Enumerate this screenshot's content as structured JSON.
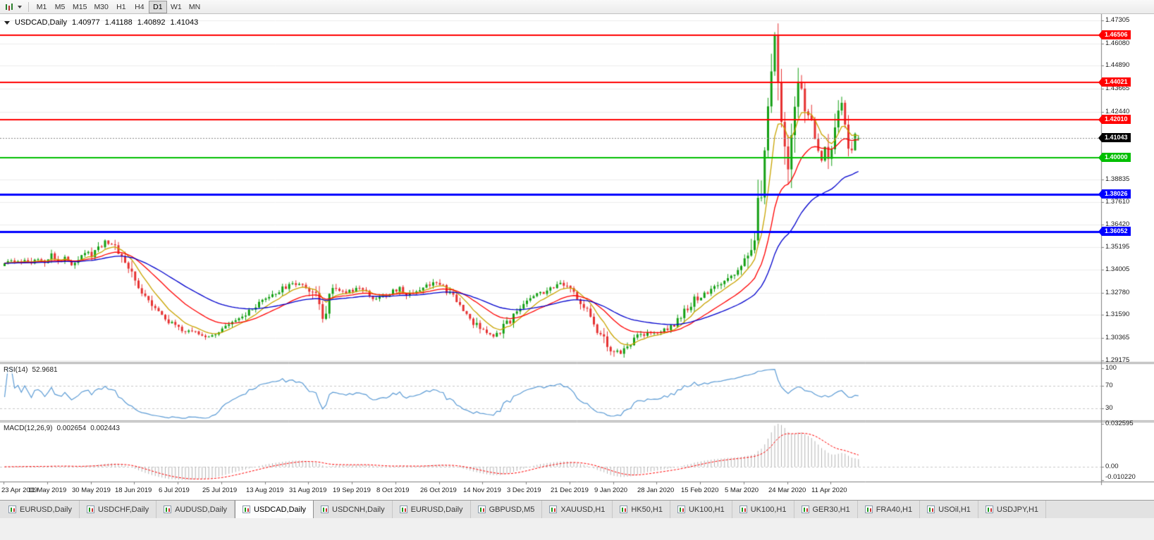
{
  "toolbar": {
    "timeframes": [
      {
        "label": "M1",
        "active": false
      },
      {
        "label": "M5",
        "active": false
      },
      {
        "label": "M15",
        "active": false
      },
      {
        "label": "M30",
        "active": false
      },
      {
        "label": "H1",
        "active": false
      },
      {
        "label": "H4",
        "active": false
      },
      {
        "label": "D1",
        "active": true
      },
      {
        "label": "W1",
        "active": false
      },
      {
        "label": "MN",
        "active": false
      }
    ]
  },
  "chart_header": {
    "symbol_period": "USDCAD,Daily",
    "open": "1.40977",
    "high": "1.41188",
    "low": "1.40892",
    "close": "1.41043"
  },
  "chart_data": {
    "type": "candlestick",
    "symbol": "USDCAD",
    "timeframe": "Daily",
    "num_candles": 256,
    "candles_per_label": 13,
    "x_labels": [
      "23 Apr 2019",
      "11 May 2019",
      "30 May 2019",
      "18 Jun 2019",
      "6 Jul 2019",
      "25 Jul 2019",
      "13 Aug 2019",
      "31 Aug 2019",
      "19 Sep 2019",
      "8 Oct 2019",
      "26 Oct 2019",
      "14 Nov 2019",
      "3 Dec 2019",
      "21 Dec 2019",
      "9 Jan 2020",
      "28 Jan 2020",
      "15 Feb 2020",
      "5 Mar 2020",
      "24 Mar 2020",
      "11 Apr 2020"
    ],
    "y_axis": {
      "min": 1.2905,
      "max": 1.4765,
      "ticks": [
        {
          "v": 1.47305,
          "label": "1.47305"
        },
        {
          "v": 1.4608,
          "label": "1.46080"
        },
        {
          "v": 1.4489,
          "label": "1.44890"
        },
        {
          "v": 1.43665,
          "label": "1.43665"
        },
        {
          "v": 1.4244,
          "label": "1.42440"
        },
        {
          "v": 1.38835,
          "label": "1.38835"
        },
        {
          "v": 1.3761,
          "label": "1.37610"
        },
        {
          "v": 1.3642,
          "label": "1.36420"
        },
        {
          "v": 1.35195,
          "label": "1.35195"
        },
        {
          "v": 1.34005,
          "label": "1.34005"
        },
        {
          "v": 1.3278,
          "label": "1.32780"
        },
        {
          "v": 1.3159,
          "label": "1.31590"
        },
        {
          "v": 1.30365,
          "label": "1.30365"
        },
        {
          "v": 1.29175,
          "label": "1.29175"
        }
      ]
    },
    "h_lines": [
      {
        "value": 1.46506,
        "label": "1.46506",
        "color": "#FF0000",
        "width": 2
      },
      {
        "value": 1.44021,
        "label": "1.44021",
        "color": "#FF0000",
        "width": 2
      },
      {
        "value": 1.4201,
        "label": "1.42010",
        "color": "#FF0000",
        "width": 2
      },
      {
        "value": 1.4,
        "label": "1.40000",
        "color": "#00BF00",
        "width": 2
      },
      {
        "value": 1.38026,
        "label": "1.38026",
        "color": "#0000FF",
        "width": 3
      },
      {
        "value": 1.36052,
        "label": "1.36052",
        "color": "#0000FF",
        "width": 3
      }
    ],
    "current_price": {
      "value": 1.41043,
      "label": "1.41043",
      "color": "#000000"
    },
    "moving_averages": [
      {
        "name": "ma-fast",
        "period": 8,
        "color": "#C9A400"
      },
      {
        "name": "ma-medium",
        "period": 21,
        "color": "#FF0000"
      },
      {
        "name": "ma-slow",
        "period": 45,
        "color": "#0000CD"
      }
    ],
    "price_anchors": [
      [
        0,
        1.342
      ],
      [
        2,
        1.3452
      ],
      [
        4,
        1.343
      ],
      [
        6,
        1.3462
      ],
      [
        8,
        1.344
      ],
      [
        10,
        1.3472
      ],
      [
        12,
        1.3448
      ],
      [
        14,
        1.3478
      ],
      [
        16,
        1.3442
      ],
      [
        18,
        1.346
      ],
      [
        20,
        1.3432
      ],
      [
        22,
        1.3468
      ],
      [
        24,
        1.3498
      ],
      [
        26,
        1.3478
      ],
      [
        28,
        1.352
      ],
      [
        30,
        1.3556
      ],
      [
        32,
        1.354
      ],
      [
        34,
        1.3498
      ],
      [
        36,
        1.3452
      ],
      [
        38,
        1.3372
      ],
      [
        40,
        1.3302
      ],
      [
        42,
        1.3268
      ],
      [
        44,
        1.3228
      ],
      [
        46,
        1.318
      ],
      [
        48,
        1.314
      ],
      [
        50,
        1.3108
      ],
      [
        52,
        1.3085
      ],
      [
        54,
        1.3068
      ],
      [
        56,
        1.3076
      ],
      [
        58,
        1.3055
      ],
      [
        60,
        1.3042
      ],
      [
        62,
        1.3058
      ],
      [
        64,
        1.3072
      ],
      [
        66,
        1.309
      ],
      [
        68,
        1.3112
      ],
      [
        70,
        1.3136
      ],
      [
        72,
        1.316
      ],
      [
        74,
        1.3186
      ],
      [
        76,
        1.3214
      ],
      [
        78,
        1.324
      ],
      [
        80,
        1.3264
      ],
      [
        82,
        1.329
      ],
      [
        84,
        1.3306
      ],
      [
        86,
        1.332
      ],
      [
        88,
        1.3332
      ],
      [
        90,
        1.331
      ],
      [
        92,
        1.3288
      ],
      [
        94,
        1.3212
      ],
      [
        95,
        1.3168
      ],
      [
        96,
        1.32
      ],
      [
        97,
        1.3256
      ],
      [
        98,
        1.33
      ],
      [
        100,
        1.3292
      ],
      [
        102,
        1.3282
      ],
      [
        104,
        1.3292
      ],
      [
        106,
        1.33
      ],
      [
        108,
        1.3276
      ],
      [
        110,
        1.3256
      ],
      [
        112,
        1.3246
      ],
      [
        114,
        1.3264
      ],
      [
        116,
        1.3284
      ],
      [
        118,
        1.33
      ],
      [
        120,
        1.3266
      ],
      [
        122,
        1.3282
      ],
      [
        124,
        1.33
      ],
      [
        126,
        1.3318
      ],
      [
        128,
        1.3336
      ],
      [
        130,
        1.3316
      ],
      [
        132,
        1.329
      ],
      [
        134,
        1.3252
      ],
      [
        136,
        1.321
      ],
      [
        138,
        1.3168
      ],
      [
        140,
        1.312
      ],
      [
        142,
        1.3082
      ],
      [
        144,
        1.306
      ],
      [
        146,
        1.3056
      ],
      [
        148,
        1.3076
      ],
      [
        150,
        1.311
      ],
      [
        152,
        1.3158
      ],
      [
        154,
        1.3204
      ],
      [
        156,
        1.3244
      ],
      [
        158,
        1.3264
      ],
      [
        160,
        1.3276
      ],
      [
        162,
        1.329
      ],
      [
        164,
        1.3308
      ],
      [
        166,
        1.332
      ],
      [
        168,
        1.3304
      ],
      [
        170,
        1.328
      ],
      [
        172,
        1.323
      ],
      [
        174,
        1.3178
      ],
      [
        176,
        1.312
      ],
      [
        178,
        1.305
      ],
      [
        180,
        1.299
      ],
      [
        182,
        1.2955
      ],
      [
        184,
        1.2962
      ],
      [
        186,
        1.2996
      ],
      [
        188,
        1.303
      ],
      [
        190,
        1.305
      ],
      [
        192,
        1.306
      ],
      [
        194,
        1.3066
      ],
      [
        196,
        1.3076
      ],
      [
        198,
        1.309
      ],
      [
        200,
        1.3112
      ],
      [
        202,
        1.315
      ],
      [
        204,
        1.32
      ],
      [
        206,
        1.3244
      ],
      [
        208,
        1.326
      ],
      [
        210,
        1.328
      ],
      [
        212,
        1.33
      ],
      [
        214,
        1.3322
      ],
      [
        216,
        1.3346
      ],
      [
        218,
        1.338
      ],
      [
        220,
        1.3408
      ],
      [
        222,
        1.3455
      ],
      [
        223,
        1.353
      ],
      [
        224,
        1.362
      ],
      [
        225,
        1.373
      ],
      [
        226,
        1.386
      ],
      [
        227,
        1.404
      ],
      [
        228,
        1.423
      ],
      [
        229,
        1.446
      ],
      [
        230,
        1.462
      ],
      [
        231,
        1.442
      ],
      [
        232,
        1.423
      ],
      [
        233,
        1.407
      ],
      [
        234,
        1.399
      ],
      [
        235,
        1.414
      ],
      [
        236,
        1.43
      ],
      [
        237,
        1.443
      ],
      [
        238,
        1.437
      ],
      [
        239,
        1.429
      ],
      [
        240,
        1.422
      ],
      [
        241,
        1.417
      ],
      [
        242,
        1.411
      ],
      [
        243,
        1.405
      ],
      [
        244,
        1.399
      ],
      [
        245,
        1.405
      ],
      [
        246,
        1.3975
      ],
      [
        247,
        1.406
      ],
      [
        248,
        1.414
      ],
      [
        249,
        1.421
      ],
      [
        250,
        1.4255
      ],
      [
        251,
        1.416
      ],
      [
        252,
        1.409
      ],
      [
        253,
        1.406
      ],
      [
        254,
        1.412
      ],
      [
        255,
        1.41043
      ]
    ],
    "extremes": [
      {
        "i": 230,
        "h": 1.4668
      },
      {
        "i": 182,
        "l": 1.2936
      },
      {
        "i": 234,
        "l": 1.3944
      },
      {
        "i": 246,
        "l": 1.3938
      },
      {
        "i": 250,
        "h": 1.43
      }
    ],
    "rsi": {
      "name": "RSI(14)",
      "value": "52.9681",
      "period": 14,
      "color": "#5B9BD5",
      "range": [
        8,
        108
      ],
      "levels": [
        70,
        30
      ],
      "axis": [
        {
          "v": 100,
          "label": "100"
        },
        {
          "v": 70,
          "label": "70"
        },
        {
          "v": 30,
          "label": "30"
        }
      ]
    },
    "macd": {
      "name": "MACD(12,26,9)",
      "value": "0.002654",
      "signal": "0.002443",
      "range": [
        -0.0112,
        0.0336
      ],
      "axis": [
        {
          "v": 0.032595,
          "label": "0.032595"
        },
        {
          "v": 0,
          "label": "0.00"
        },
        {
          "v": -0.01022,
          "label": "-0.010220"
        }
      ]
    },
    "style": {
      "candle_up": "#14A014",
      "candle_down": "#E63131",
      "grid": "#EDEDED",
      "macd_hist": "#B4B4B4",
      "macd_signal": "#FF0000"
    }
  },
  "tabs": [
    {
      "label": "EURUSD,Daily",
      "active": false
    },
    {
      "label": "USDCHF,Daily",
      "active": false
    },
    {
      "label": "AUDUSD,Daily",
      "active": false
    },
    {
      "label": "USDCAD,Daily",
      "active": true
    },
    {
      "label": "USDCNH,Daily",
      "active": false
    },
    {
      "label": "EURUSD,Daily",
      "active": false
    },
    {
      "label": "GBPUSD,M5",
      "active": false
    },
    {
      "label": "XAUUSD,H1",
      "active": false
    },
    {
      "label": "HK50,H1",
      "active": false
    },
    {
      "label": "UK100,H1",
      "active": false
    },
    {
      "label": "UK100,H1",
      "active": false
    },
    {
      "label": "GER30,H1",
      "active": false
    },
    {
      "label": "FRA40,H1",
      "active": false
    },
    {
      "label": "USOil,H1",
      "active": false
    },
    {
      "label": "USDJPY,H1",
      "active": false
    }
  ]
}
